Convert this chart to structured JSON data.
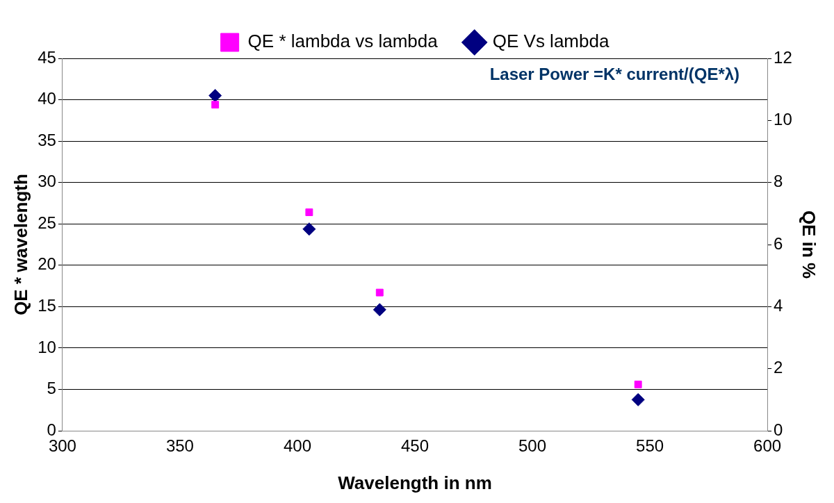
{
  "chart_data": {
    "type": "scatter",
    "xlabel": "Wavelength in nm",
    "ylabel": "QE * wavelength",
    "y2label": "QE in %",
    "annotations": [
      "Laser Power =K* current/(QE*λ)"
    ],
    "series": [
      {
        "name": "QE * lambda vs lambda",
        "color": "#ff00ff",
        "marker": "square",
        "x": [
          365,
          405,
          435,
          545
        ],
        "values": [
          39.4,
          26.4,
          16.7,
          5.6
        ]
      },
      {
        "name": "QE Vs lambda",
        "color": "#000080",
        "marker": "diamond",
        "axis": "y2",
        "x": [
          365,
          405,
          435,
          545
        ],
        "values": [
          10.8,
          6.5,
          3.9,
          1.0
        ]
      }
    ],
    "xlim": [
      300,
      600
    ],
    "xticks": [
      300,
      350,
      400,
      450,
      500,
      550,
      600
    ],
    "ylim": [
      0,
      45
    ],
    "yticks": [
      0,
      5,
      10,
      15,
      20,
      25,
      30,
      35,
      40,
      45
    ],
    "y2lim": [
      0,
      12
    ],
    "y2ticks": [
      0,
      2,
      4,
      6,
      8,
      10,
      12
    ],
    "grid": "y",
    "legend": "top"
  }
}
